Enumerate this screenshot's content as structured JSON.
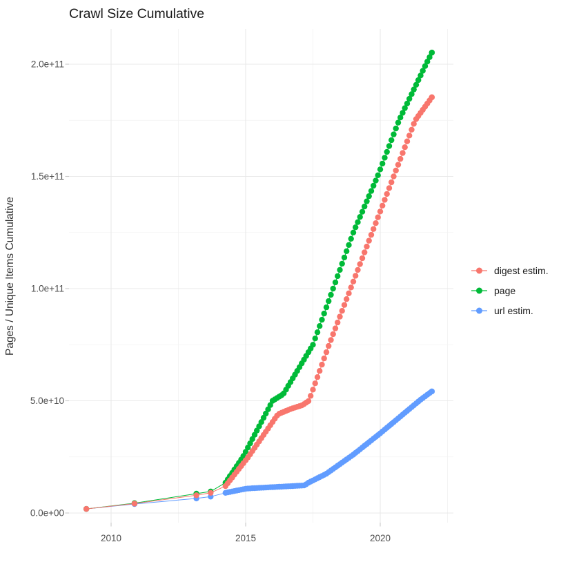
{
  "chart_data": {
    "type": "line",
    "title": "Crawl Size Cumulative",
    "xlabel": "",
    "ylabel": "Pages / Unique Items Cumulative",
    "grid": true,
    "legend_position": "right",
    "values_unit": "1e9",
    "x_ticks": [
      {
        "value": 2010,
        "label": "2010"
      },
      {
        "value": 2015,
        "label": "2015"
      },
      {
        "value": 2020,
        "label": "2020"
      }
    ],
    "x_minor_ticks": [
      2012.5,
      2017.5,
      2022.5
    ],
    "y_ticks": [
      {
        "value_e9": 0,
        "label": "0.0e+00"
      },
      {
        "value_e9": 50,
        "label": "5.0e+10"
      },
      {
        "value_e9": 100,
        "label": "1.0e+11"
      },
      {
        "value_e9": 150,
        "label": "1.5e+11"
      },
      {
        "value_e9": 200,
        "label": "2.0e+11"
      }
    ],
    "y_minor_ticks_e9": [
      25,
      75,
      125,
      175
    ],
    "xlim": [
      2008.45,
      2022.65
    ],
    "ylim_e9": [
      -4,
      216
    ],
    "marker_interval_months": 1,
    "markers_monthly_from_year": 2014.25,
    "series": [
      {
        "name": "url estim.",
        "color": "#619CFF",
        "points_e9": [
          [
            2009.08,
            1.8
          ],
          [
            2010.87,
            4.0
          ],
          [
            2013.17,
            6.5
          ],
          [
            2013.7,
            7.3
          ],
          [
            2014.25,
            9.0
          ],
          [
            2015.0,
            10.8
          ],
          [
            2015.2,
            11.0
          ],
          [
            2017.2,
            12.3
          ],
          [
            2017.3,
            13.3
          ],
          [
            2018.0,
            17.5
          ],
          [
            2019.0,
            26.0
          ],
          [
            2020.0,
            35.5
          ],
          [
            2020.75,
            43.0
          ],
          [
            2021.2,
            47.5
          ],
          [
            2021.5,
            50.5
          ],
          [
            2021.92,
            54.2
          ]
        ]
      },
      {
        "name": "page",
        "color": "#00BA38",
        "points_e9": [
          [
            2009.08,
            1.8
          ],
          [
            2010.87,
            4.4
          ],
          [
            2013.17,
            8.6
          ],
          [
            2013.7,
            9.6
          ],
          [
            2014.25,
            13.5
          ],
          [
            2014.9,
            25.0
          ],
          [
            2016.0,
            50.0
          ],
          [
            2016.4,
            53.0
          ],
          [
            2017.5,
            75.0
          ],
          [
            2019.0,
            125.0
          ],
          [
            2019.9,
            150.0
          ],
          [
            2020.7,
            175.0
          ],
          [
            2021.7,
            200.0
          ],
          [
            2021.92,
            205.2
          ]
        ]
      },
      {
        "name": "digest estim.",
        "color": "#F8766D",
        "points_e9": [
          [
            2009.08,
            1.8
          ],
          [
            2010.87,
            4.2
          ],
          [
            2013.17,
            7.9
          ],
          [
            2013.7,
            9.0
          ],
          [
            2014.25,
            12.0
          ],
          [
            2015.1,
            25.0
          ],
          [
            2016.2,
            44.0
          ],
          [
            2016.7,
            46.5
          ],
          [
            2017.1,
            48.0
          ],
          [
            2017.35,
            50.0
          ],
          [
            2018.1,
            75.0
          ],
          [
            2018.9,
            100.0
          ],
          [
            2019.7,
            125.0
          ],
          [
            2020.5,
            150.0
          ],
          [
            2021.3,
            175.0
          ],
          [
            2021.92,
            185.3
          ]
        ]
      }
    ]
  },
  "legend": {
    "items": [
      {
        "label": "digest estim.",
        "color": "#F8766D"
      },
      {
        "label": "page",
        "color": "#00BA38"
      },
      {
        "label": "url estim.",
        "color": "#619CFF"
      }
    ]
  },
  "style": {
    "grid_major_color": "#E9E9E9",
    "grid_minor_color": "#F2F2F2",
    "tick_color": "#c8c8c8",
    "background": "#ffffff"
  }
}
